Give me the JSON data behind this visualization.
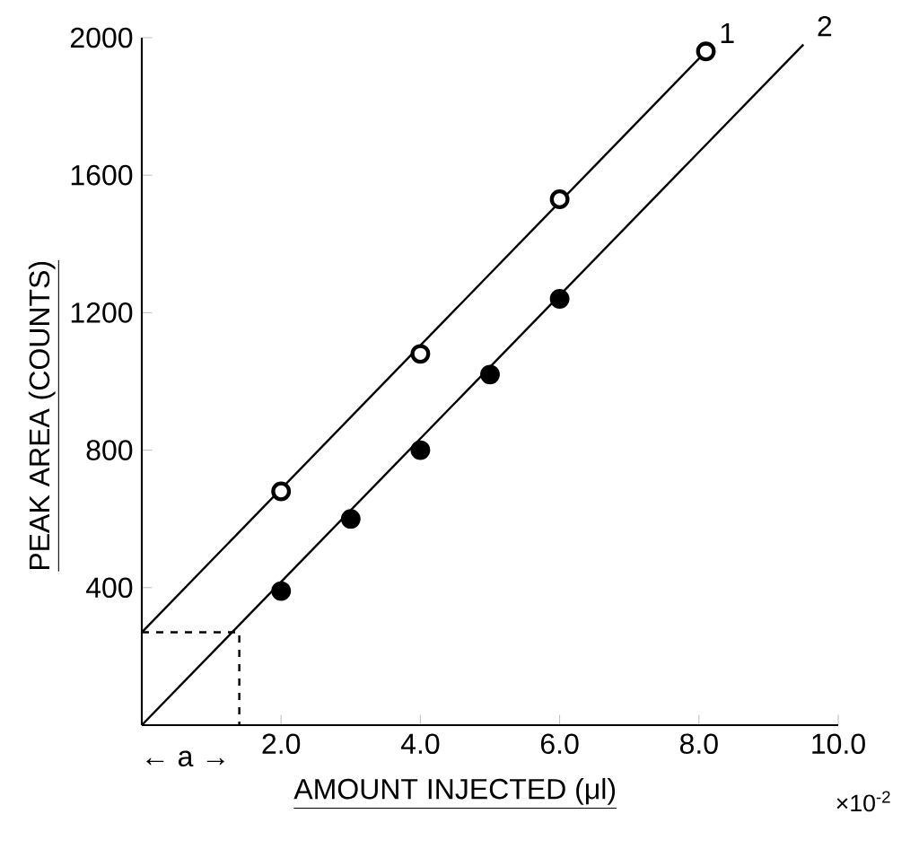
{
  "chart_data": {
    "type": "scatter",
    "xlabel": "AMOUNT INJECTED (μl)",
    "ylabel": "PEAK AREA (COUNTS)",
    "xlim": [
      0,
      10
    ],
    "ylim": [
      0,
      2000
    ],
    "xticks": [
      {
        "value": 2,
        "label": "2.0"
      },
      {
        "value": 4,
        "label": "4.0"
      },
      {
        "value": 6,
        "label": "6.0"
      },
      {
        "value": 8,
        "label": "8.0"
      },
      {
        "value": 10,
        "label": "10.0"
      }
    ],
    "yticks": [
      400,
      800,
      1200,
      1600,
      2000
    ],
    "grid": false,
    "series": [
      {
        "marker": "circle",
        "color": "#ffffff",
        "x": [
          2,
          4,
          6,
          8.1
        ],
        "values": [
          680,
          1080,
          1530,
          1960
        ]
      },
      {
        "marker": "circle",
        "color": "#000000",
        "x": [
          2,
          3,
          4,
          5,
          6
        ],
        "values": [
          390,
          600,
          800,
          1020,
          1240
        ]
      },
      {
        "type": "line",
        "marker": "none",
        "line_style": "solid",
        "color": "#000000",
        "x": [
          0,
          8.1
        ],
        "values": [
          270,
          1960
        ]
      },
      {
        "type": "line",
        "marker": "none",
        "line_style": "solid",
        "color": "#000000",
        "x": [
          0,
          9.5
        ],
        "values": [
          0,
          1980
        ]
      },
      {
        "type": "line",
        "marker": "none",
        "line_style": "dashed",
        "color": "#000000",
        "x": [
          0,
          1.4,
          1.4
        ],
        "values": [
          270,
          270,
          0
        ]
      }
    ],
    "annotations": [
      {
        "text": "1",
        "x": 8.1,
        "y": 1960
      },
      {
        "text": "2",
        "x": 9.5,
        "y": 1980
      },
      "← a →",
      "×10$^{-2}$"
    ]
  }
}
